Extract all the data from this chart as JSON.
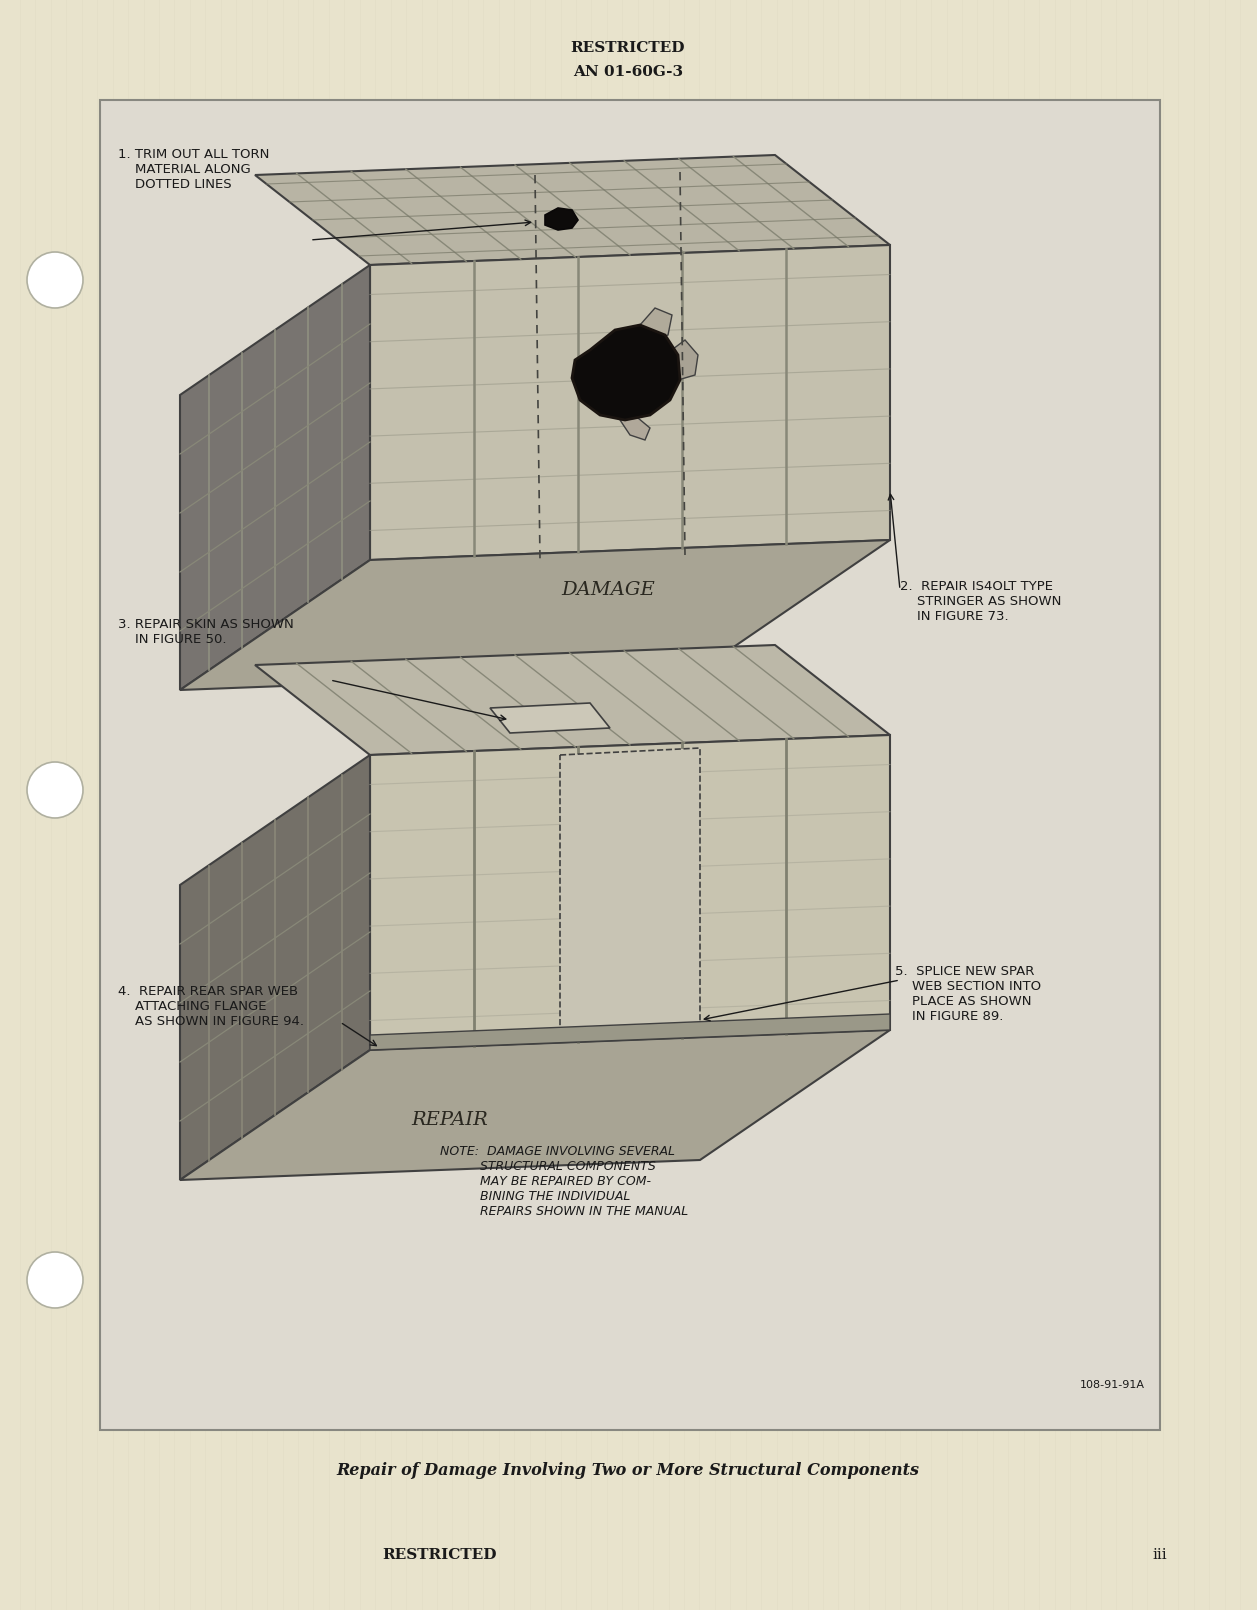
{
  "bg_color": "#e8e3cc",
  "text_color": "#1a1a1a",
  "header_text_1": "RESTRICTED",
  "header_text_2": "AN 01-60G-3",
  "footer_restricted": "RESTRICTED",
  "footer_page": "iii",
  "caption": "Repair of Damage Involving Two or More Structural Components",
  "annotation_1": "1. TRIM OUT ALL TORN\n    MATERIAL ALONG\n    DOTTED LINES",
  "annotation_2": "2.  REPAIR IS4OLT TYPE\n    STRINGER AS SHOWN\n    IN FIGURE 73.",
  "annotation_3": "3. REPAIR SKIN AS SHOWN\n    IN FIGURE 50.",
  "annotation_4": "4.  REPAIR REAR SPAR WEB\n    ATTACHING FLANGE\n    AS SHOWN IN FIGURE 94.",
  "annotation_5": "5.  SPLICE NEW SPAR\n    WEB SECTION INTO\n    PLACE AS SHOWN\n    IN FIGURE 89.",
  "label_damage": "DAMAGE",
  "label_repair": "REPAIR",
  "note_text": "NOTE:  DAMAGE INVOLVING SEVERAL\n          STRUCTURAL COMPONENTS\n          MAY BE REPAIRED BY COM-\n          BINING THE INDIVIDUAL\n          REPAIRS SHOWN IN THE MANUAL",
  "figure_ref": "108-91-91A"
}
